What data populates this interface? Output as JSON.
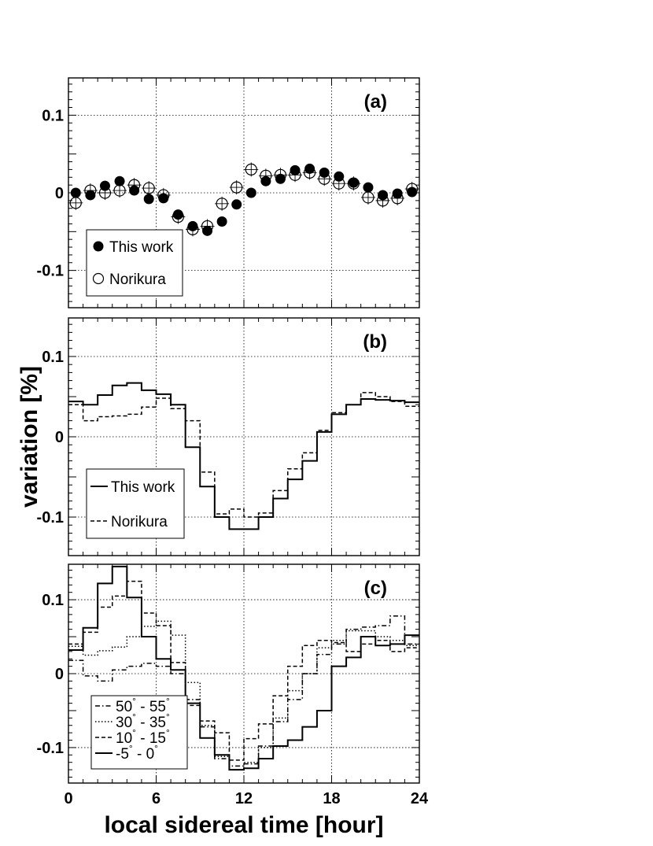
{
  "figure": {
    "xlabel": "local sidereal time [hour]",
    "ylabel": "variation [%]"
  },
  "chart_data": [
    {
      "type": "scatter",
      "panel_label": "(a)",
      "xlim": [
        0,
        24
      ],
      "ylim": [
        -0.148,
        0.148
      ],
      "x_ticks": [
        0,
        6,
        12,
        18,
        24
      ],
      "y_ticks": [
        -0.1,
        0,
        0.1
      ],
      "y_tick_labels": [
        "-0.1",
        "0",
        "0.1"
      ],
      "grid": true,
      "legend_position": "bottom-left",
      "x": [
        0.5,
        1.5,
        2.5,
        3.5,
        4.5,
        5.5,
        6.5,
        7.5,
        8.5,
        9.5,
        10.5,
        11.5,
        12.5,
        13.5,
        14.5,
        15.5,
        16.5,
        17.5,
        18.5,
        19.5,
        20.5,
        21.5,
        22.5,
        23.5
      ],
      "series": [
        {
          "name": "This work",
          "marker": "filled-circle",
          "values": [
            0.0,
            -0.003,
            0.009,
            0.015,
            0.003,
            -0.008,
            -0.007,
            -0.028,
            -0.043,
            -0.049,
            -0.037,
            -0.015,
            0.0,
            0.015,
            0.018,
            0.029,
            0.031,
            0.026,
            0.021,
            0.013,
            0.007,
            -0.003,
            -0.001,
            0.001
          ]
        },
        {
          "name": "Norikura",
          "marker": "open-circle",
          "values": [
            -0.013,
            0.003,
            0.0,
            0.003,
            0.01,
            0.006,
            -0.003,
            -0.031,
            -0.047,
            -0.043,
            -0.014,
            0.007,
            0.03,
            0.022,
            0.023,
            0.023,
            0.026,
            0.018,
            0.012,
            0.012,
            -0.006,
            -0.01,
            -0.007,
            0.005
          ]
        }
      ]
    },
    {
      "type": "line",
      "step": true,
      "panel_label": "(b)",
      "xlim": [
        0,
        24
      ],
      "ylim": [
        -0.148,
        0.148
      ],
      "x_ticks": [
        0,
        6,
        12,
        18,
        24
      ],
      "y_ticks": [
        -0.1,
        0,
        0.1
      ],
      "y_tick_labels": [
        "-0.1",
        "0",
        "0.1"
      ],
      "grid": true,
      "legend_position": "bottom-left",
      "bin_edges": [
        0,
        1,
        2,
        3,
        4,
        5,
        6,
        7,
        8,
        9,
        10,
        11,
        12,
        13,
        14,
        15,
        16,
        17,
        18,
        19,
        20,
        21,
        22,
        23,
        24
      ],
      "series": [
        {
          "name": "This work",
          "dash": "solid",
          "values": [
            0.044,
            0.04,
            0.052,
            0.064,
            0.067,
            0.058,
            0.053,
            0.04,
            -0.013,
            -0.062,
            -0.1,
            -0.115,
            -0.115,
            -0.1,
            -0.077,
            -0.053,
            -0.03,
            0.006,
            0.028,
            0.04,
            0.047,
            0.046,
            0.045,
            0.043
          ]
        },
        {
          "name": "Norikura",
          "dash": "dashed",
          "values": [
            0.04,
            0.02,
            0.025,
            0.026,
            0.028,
            0.037,
            0.048,
            0.035,
            0.02,
            -0.044,
            -0.096,
            -0.09,
            -0.1,
            -0.095,
            -0.067,
            -0.04,
            -0.02,
            0.008,
            0.03,
            0.04,
            0.055,
            0.05,
            0.044,
            0.038
          ]
        }
      ]
    },
    {
      "type": "line",
      "step": true,
      "panel_label": "(c)",
      "xlim": [
        0,
        24
      ],
      "ylim": [
        -0.148,
        0.148
      ],
      "x_ticks": [
        0,
        6,
        12,
        18,
        24
      ],
      "x_tick_labels": [
        "0",
        "6",
        "12",
        "18",
        "24"
      ],
      "y_ticks": [
        -0.1,
        0,
        0.1
      ],
      "y_tick_labels": [
        "-0.1",
        "0",
        "0.1"
      ],
      "grid": true,
      "legend_position": "bottom-left",
      "bin_edges": [
        0,
        1,
        2,
        3,
        4,
        5,
        6,
        7,
        8,
        9,
        10,
        11,
        12,
        13,
        14,
        15,
        16,
        17,
        18,
        19,
        20,
        21,
        22,
        23,
        24
      ],
      "series": [
        {
          "name_main": "50",
          "name_mid": " - 55",
          "dash": "dash-dot",
          "values": [
            0.018,
            -0.003,
            -0.01,
            0.005,
            0.01,
            0.014,
            0.01,
            0.0,
            -0.035,
            -0.072,
            -0.115,
            -0.125,
            -0.122,
            -0.098,
            -0.065,
            -0.035,
            0.0,
            0.026,
            0.04,
            0.06,
            0.063,
            0.065,
            0.078,
            0.04
          ]
        },
        {
          "name_main": "30",
          "name_mid": " - 35",
          "dash": "dotted",
          "values": [
            0.037,
            0.025,
            0.031,
            0.036,
            0.05,
            0.064,
            0.071,
            0.052,
            -0.012,
            -0.07,
            -0.112,
            -0.13,
            -0.12,
            -0.1,
            -0.06,
            -0.023,
            0.0,
            0.035,
            0.045,
            0.058,
            0.058,
            0.05,
            0.045,
            0.038
          ]
        },
        {
          "name_main": "10",
          "name_mid": " - 15",
          "dash": "dashed",
          "values": [
            0.04,
            0.056,
            0.09,
            0.105,
            0.125,
            0.082,
            0.065,
            0.015,
            -0.043,
            -0.064,
            -0.08,
            -0.117,
            -0.088,
            -0.068,
            -0.03,
            0.01,
            0.038,
            0.045,
            0.042,
            0.03,
            0.04,
            0.045,
            0.03,
            0.035
          ]
        },
        {
          "name_main": "-5",
          "name_mid": " - 0",
          "dash": "solid",
          "values": [
            0.032,
            0.062,
            0.122,
            0.145,
            0.103,
            0.05,
            0.02,
            0.005,
            -0.04,
            -0.087,
            -0.11,
            -0.13,
            -0.128,
            -0.115,
            -0.098,
            -0.09,
            -0.072,
            -0.05,
            0.01,
            0.022,
            0.05,
            0.038,
            0.04,
            0.052
          ]
        }
      ]
    }
  ]
}
